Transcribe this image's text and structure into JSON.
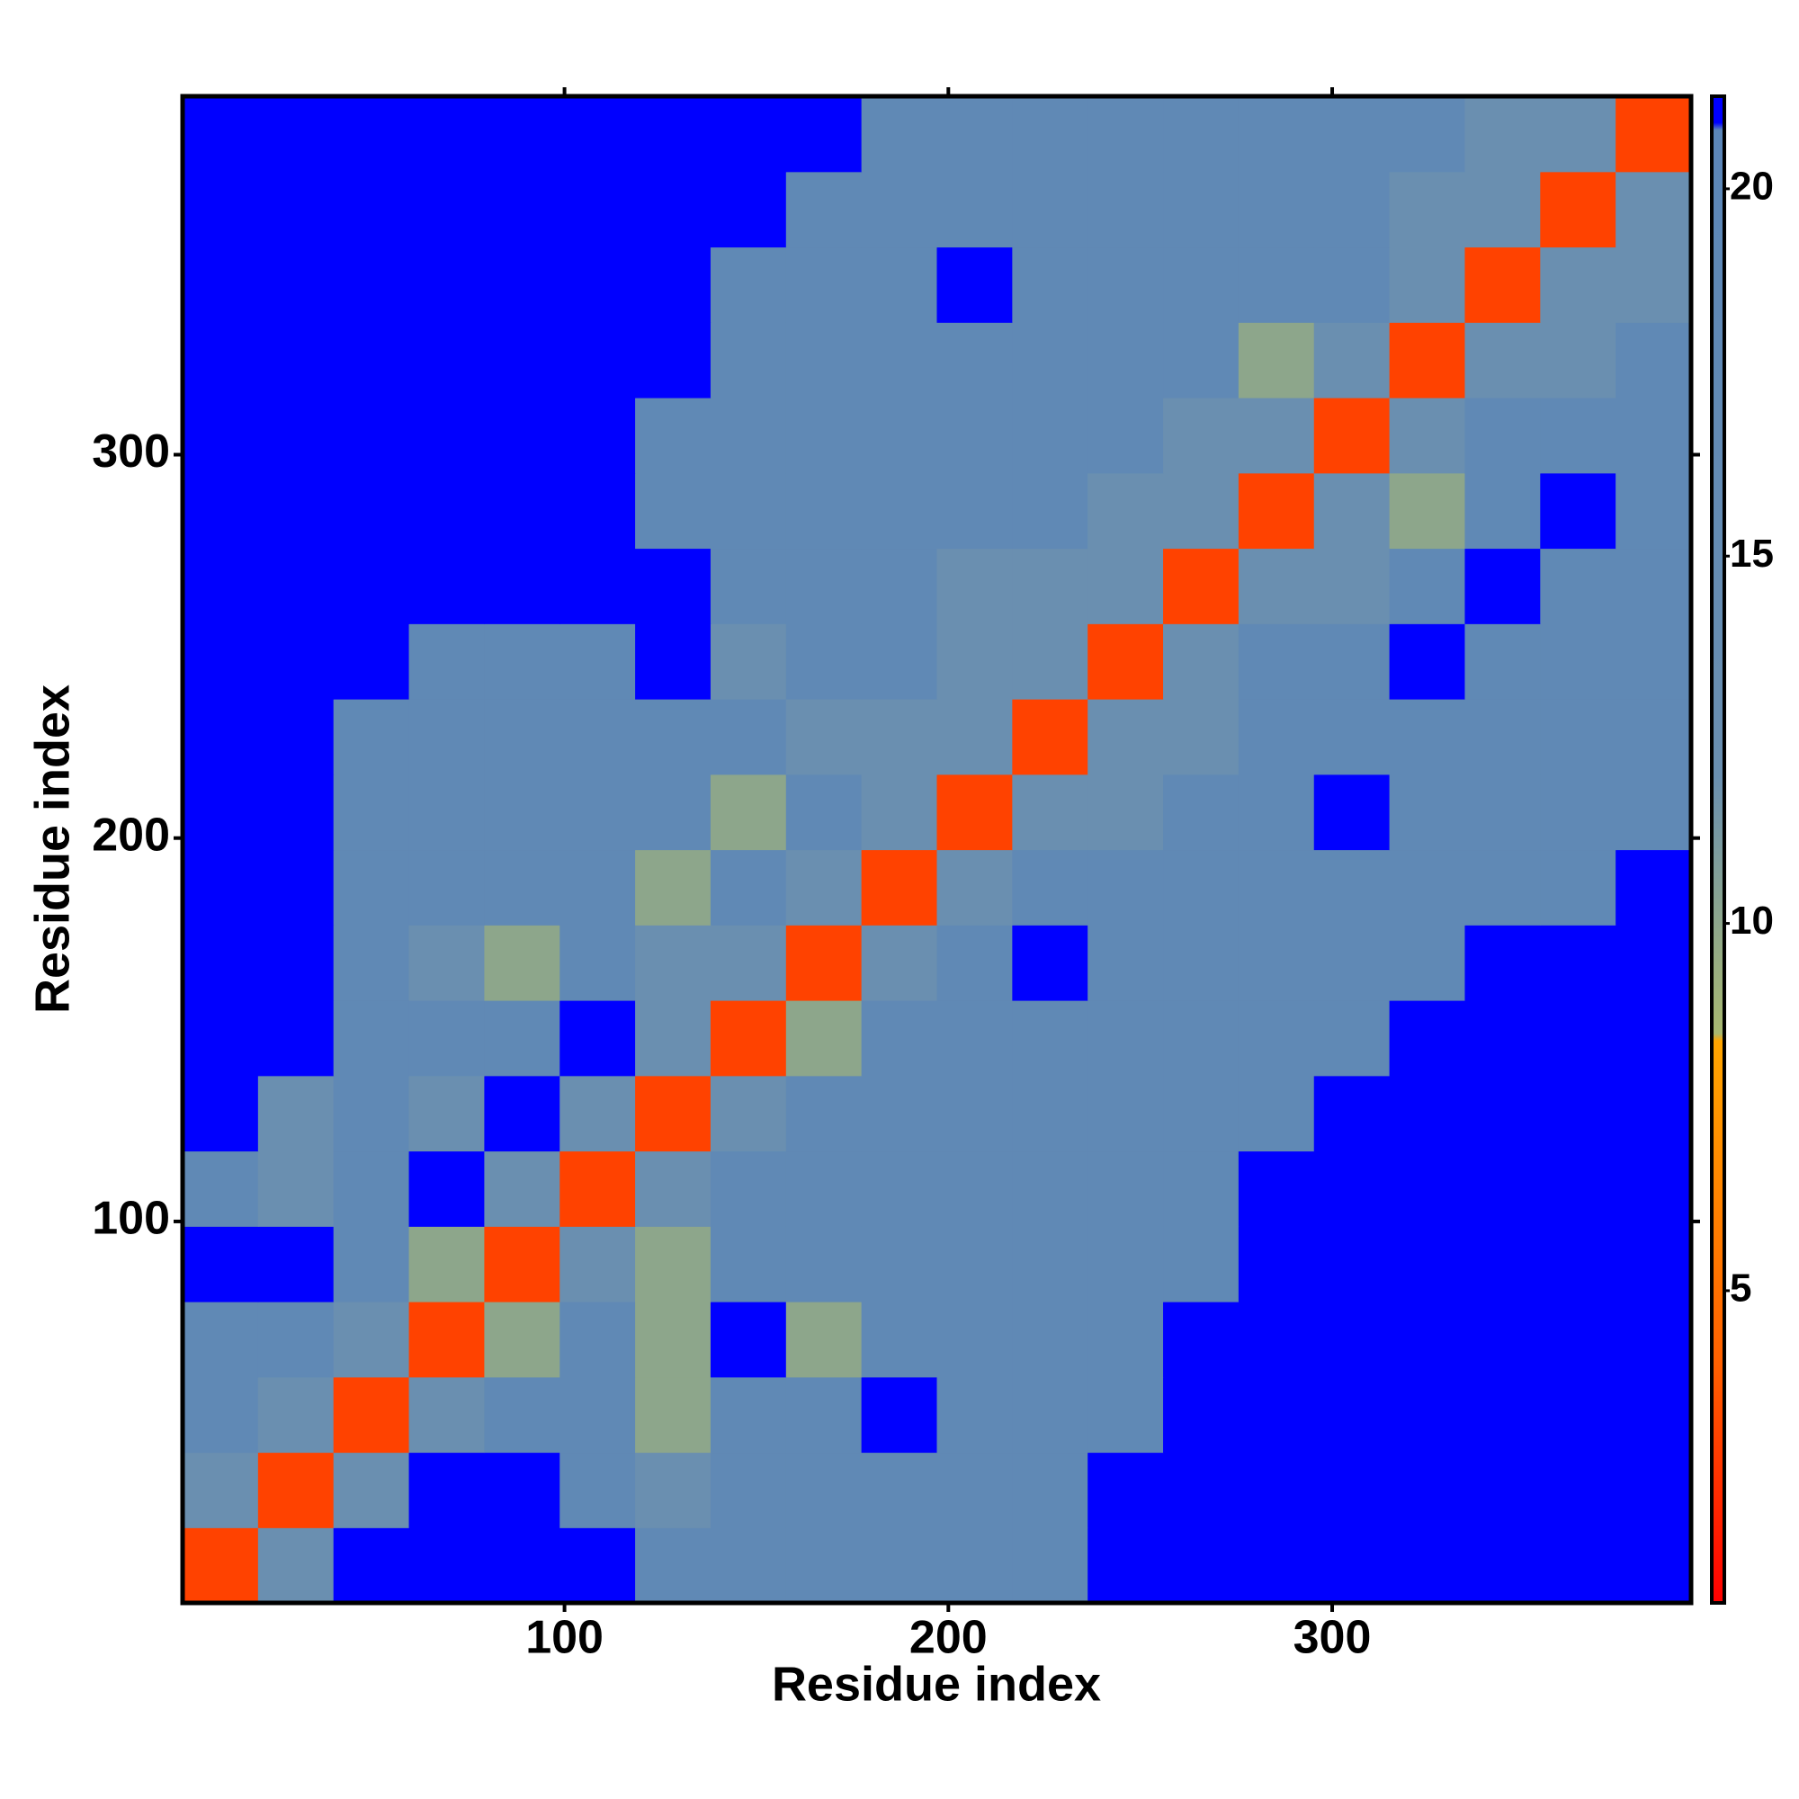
{
  "chart_data": {
    "type": "heatmap",
    "xlabel": "Residue index",
    "ylabel": "Residue index",
    "xlim": [
      0.5,
      393.5
    ],
    "ylim": [
      0.5,
      393.5
    ],
    "xticks": [
      100,
      200,
      300
    ],
    "yticks": [
      100,
      200,
      300
    ],
    "z": [
      [
        3,
        12,
        21,
        21,
        21,
        21,
        18,
        18,
        18,
        18,
        18,
        18,
        21,
        21,
        21,
        21,
        21,
        21,
        21,
        21
      ],
      [
        12,
        3,
        12,
        21,
        21,
        18,
        12,
        18,
        18,
        18,
        18,
        18,
        21,
        21,
        21,
        21,
        21,
        21,
        21,
        21
      ],
      [
        18,
        12,
        3,
        12,
        18,
        18,
        10,
        18,
        18,
        21,
        18,
        18,
        18,
        21,
        21,
        21,
        21,
        21,
        21,
        21
      ],
      [
        18,
        18,
        12,
        3,
        10,
        18,
        10,
        21,
        10,
        18,
        18,
        18,
        18,
        21,
        21,
        21,
        21,
        21,
        21,
        21
      ],
      [
        21,
        21,
        18,
        10,
        3,
        12,
        10,
        18,
        18,
        18,
        18,
        18,
        18,
        18,
        21,
        21,
        21,
        21,
        21,
        21
      ],
      [
        18,
        12,
        18,
        21,
        12,
        3,
        12,
        18,
        18,
        18,
        18,
        18,
        18,
        18,
        21,
        21,
        21,
        21,
        21,
        21
      ],
      [
        21,
        12,
        18,
        12,
        21,
        12,
        3,
        12,
        18,
        18,
        18,
        18,
        18,
        18,
        18,
        21,
        21,
        21,
        21,
        21
      ],
      [
        21,
        21,
        18,
        18,
        18,
        21,
        12,
        3,
        10,
        18,
        18,
        18,
        18,
        18,
        18,
        18,
        21,
        21,
        21,
        21
      ],
      [
        21,
        21,
        18,
        12,
        10,
        18,
        12,
        12,
        3,
        12,
        18,
        21,
        18,
        18,
        18,
        18,
        18,
        21,
        21,
        21
      ],
      [
        21,
        21,
        18,
        18,
        18,
        18,
        10,
        18,
        12,
        3,
        12,
        18,
        18,
        18,
        18,
        18,
        18,
        18,
        18,
        21
      ],
      [
        21,
        21,
        18,
        18,
        18,
        18,
        18,
        10,
        18,
        12,
        3,
        12,
        12,
        18,
        18,
        21,
        18,
        18,
        18,
        18
      ],
      [
        21,
        21,
        18,
        18,
        18,
        18,
        18,
        18,
        12,
        12,
        12,
        3,
        12,
        12,
        18,
        18,
        18,
        18,
        18,
        18
      ],
      [
        21,
        21,
        21,
        18,
        18,
        18,
        21,
        12,
        18,
        18,
        12,
        12,
        3,
        12,
        18,
        18,
        21,
        18,
        18,
        18
      ],
      [
        21,
        21,
        21,
        21,
        21,
        21,
        21,
        18,
        18,
        18,
        12,
        12,
        12,
        3,
        12,
        12,
        18,
        21,
        18,
        18
      ],
      [
        21,
        21,
        21,
        21,
        21,
        21,
        18,
        18,
        18,
        18,
        18,
        18,
        12,
        12,
        3,
        12,
        10,
        18,
        21,
        18
      ],
      [
        21,
        21,
        21,
        21,
        21,
        21,
        18,
        18,
        18,
        18,
        18,
        18,
        18,
        12,
        12,
        3,
        12,
        18,
        18,
        18
      ],
      [
        21,
        21,
        21,
        21,
        21,
        21,
        21,
        18,
        18,
        18,
        18,
        18,
        18,
        18,
        10,
        12,
        3,
        12,
        12,
        18
      ],
      [
        21,
        21,
        21,
        21,
        21,
        21,
        21,
        18,
        18,
        18,
        21,
        18,
        18,
        18,
        18,
        18,
        12,
        3,
        12,
        12
      ],
      [
        21,
        21,
        21,
        21,
        21,
        21,
        21,
        21,
        18,
        18,
        18,
        18,
        18,
        18,
        18,
        18,
        12,
        12,
        3,
        12
      ],
      [
        21,
        21,
        21,
        21,
        21,
        21,
        21,
        21,
        21,
        18,
        18,
        18,
        18,
        18,
        18,
        18,
        18,
        12,
        12,
        3
      ]
    ],
    "colorscale": [
      {
        "value": 0.75,
        "color": "#ff0000"
      },
      {
        "value": 4,
        "color": "#ff6000"
      },
      {
        "value": 8.4,
        "color": "#ffa500"
      },
      {
        "value": 8.5,
        "color": "#a8b870"
      },
      {
        "value": 12,
        "color": "#6a8fb0"
      },
      {
        "value": 20.8,
        "color": "#5b86b8"
      },
      {
        "value": 20.9,
        "color": "#0000ff"
      },
      {
        "value": 21.26,
        "color": "#0000ff"
      }
    ],
    "colorbar": {
      "lim": [
        0.75,
        21.26
      ],
      "ticks": [
        5,
        10,
        15,
        20
      ]
    }
  }
}
